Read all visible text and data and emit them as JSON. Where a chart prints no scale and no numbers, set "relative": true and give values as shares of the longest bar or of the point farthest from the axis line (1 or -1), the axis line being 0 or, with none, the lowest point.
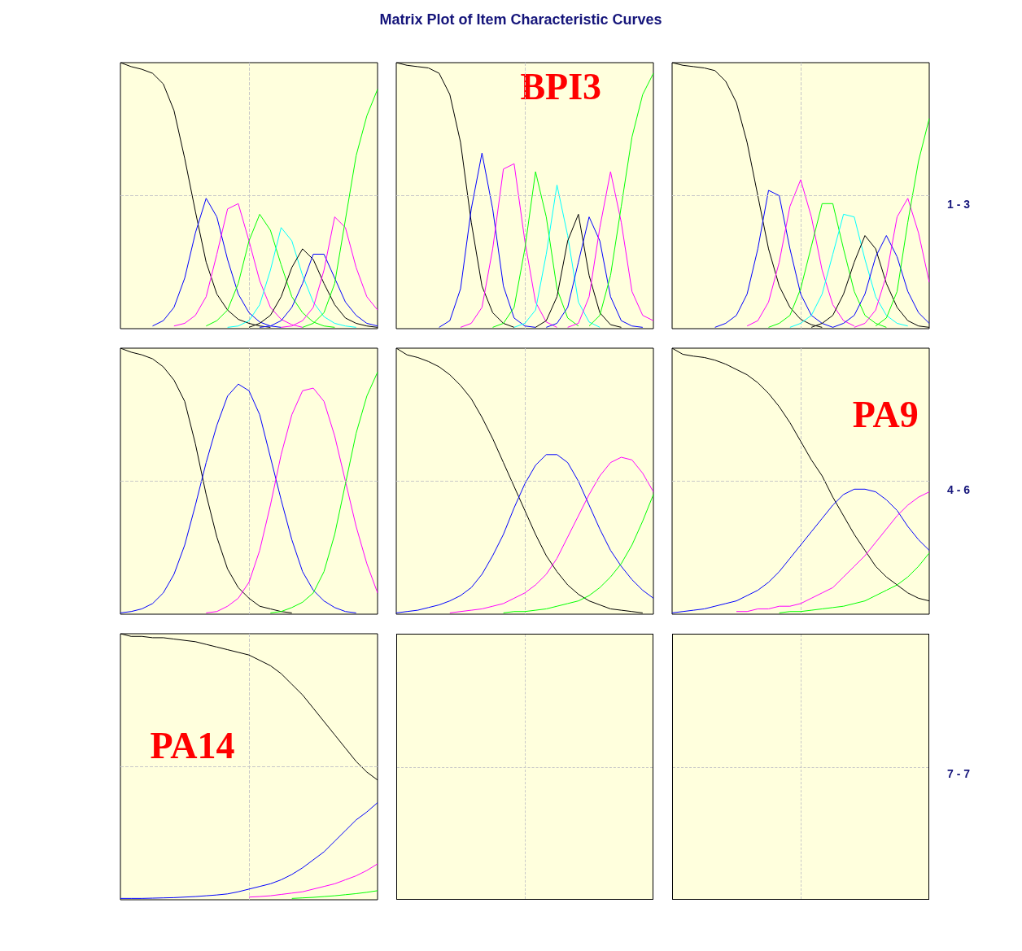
{
  "chart_data": [
    {
      "type": "other",
      "title": "Matrix Plot of Item Characteristic Curves"
    },
    {
      "type": "line",
      "relative": true,
      "grid": "x",
      "ref_lines": [
        {
          "axis": "y",
          "value": 0.5,
          "color": "#c8c8c8",
          "line_style": "dashed"
        }
      ],
      "categories": [
        null,
        null,
        null,
        null,
        null,
        null,
        null,
        null,
        null,
        null,
        null,
        null,
        null,
        null,
        null,
        null,
        null,
        null,
        null,
        null,
        null,
        null,
        null,
        null,
        null
      ],
      "series": [
        {
          "color": "#000000",
          "values": [
            1,
            0.985,
            0.975,
            0.96,
            0.92,
            0.82,
            0.64,
            0.44,
            0.25,
            0.13,
            0.07,
            0.035,
            0.02,
            0.01,
            0.005,
            null,
            null,
            null,
            null,
            null,
            null,
            null,
            null,
            null,
            null
          ]
        },
        {
          "color": "#0000ff",
          "values": [
            null,
            null,
            null,
            0.01,
            0.03,
            0.08,
            0.19,
            0.36,
            0.49,
            0.42,
            0.26,
            0.13,
            0.06,
            0.025,
            0.01,
            0.005,
            null,
            null,
            null,
            null,
            null,
            null,
            null,
            null,
            null
          ]
        },
        {
          "color": "#ff00ff",
          "values": [
            null,
            null,
            null,
            null,
            null,
            0.01,
            0.02,
            0.05,
            0.12,
            0.28,
            0.45,
            0.47,
            0.33,
            0.18,
            0.08,
            0.035,
            0.015,
            0.005,
            null,
            null,
            null,
            null,
            null,
            null,
            null
          ]
        },
        {
          "color": "#00ff00",
          "values": [
            null,
            null,
            null,
            null,
            null,
            null,
            null,
            null,
            0.01,
            0.03,
            0.07,
            0.17,
            0.33,
            0.43,
            0.37,
            0.24,
            0.12,
            0.06,
            0.025,
            0.01,
            0.005,
            null,
            null,
            null,
            null
          ]
        },
        {
          "color": "#00ffff",
          "values": [
            null,
            null,
            null,
            null,
            null,
            null,
            null,
            null,
            null,
            null,
            0.005,
            0.01,
            0.03,
            0.09,
            0.22,
            0.38,
            0.33,
            0.2,
            0.1,
            0.045,
            0.02,
            0.01,
            0.005,
            null,
            null
          ]
        },
        {
          "color": "#000000",
          "values": [
            null,
            null,
            null,
            null,
            null,
            null,
            null,
            null,
            null,
            null,
            null,
            null,
            0.005,
            0.02,
            0.05,
            0.12,
            0.23,
            0.3,
            0.26,
            0.17,
            0.09,
            0.04,
            0.02,
            0.01,
            0.005
          ]
        },
        {
          "color": "#0000ff",
          "values": [
            null,
            null,
            null,
            null,
            null,
            null,
            null,
            null,
            null,
            null,
            null,
            null,
            null,
            0.005,
            0.01,
            0.03,
            0.08,
            0.17,
            0.28,
            0.28,
            0.19,
            0.1,
            0.05,
            0.02,
            0.01
          ]
        },
        {
          "color": "#ff00ff",
          "values": [
            null,
            null,
            null,
            null,
            null,
            null,
            null,
            null,
            null,
            null,
            null,
            null,
            null,
            null,
            null,
            0.005,
            0.01,
            0.03,
            0.08,
            0.22,
            0.42,
            0.38,
            0.23,
            0.12,
            0.07
          ]
        },
        {
          "color": "#00ff00",
          "values": [
            null,
            null,
            null,
            null,
            null,
            null,
            null,
            null,
            null,
            null,
            null,
            null,
            null,
            null,
            null,
            null,
            null,
            0.005,
            0.02,
            0.06,
            0.17,
            0.41,
            0.65,
            0.8,
            0.9
          ]
        }
      ]
    },
    {
      "type": "line",
      "relative": true,
      "grid": "x",
      "ref_lines": [
        {
          "axis": "y",
          "value": 0.5,
          "color": "#c8c8c8",
          "line_style": "dashed"
        }
      ],
      "annotations": [
        "BPI3"
      ],
      "categories": [
        null,
        null,
        null,
        null,
        null,
        null,
        null,
        null,
        null,
        null,
        null,
        null,
        null,
        null,
        null,
        null,
        null,
        null,
        null,
        null,
        null,
        null,
        null,
        null,
        null
      ],
      "series": [
        {
          "color": "#000000",
          "values": [
            1,
            0.99,
            0.985,
            0.98,
            0.96,
            0.88,
            0.7,
            0.4,
            0.16,
            0.06,
            0.02,
            0.005,
            null,
            null,
            null,
            null,
            null,
            null,
            null,
            null,
            null,
            null,
            null,
            null,
            null
          ]
        },
        {
          "color": "#0000ff",
          "values": [
            null,
            null,
            null,
            null,
            0.005,
            0.03,
            0.15,
            0.45,
            0.66,
            0.45,
            0.16,
            0.04,
            0.01,
            0.005,
            null,
            null,
            null,
            null,
            null,
            null,
            null,
            null,
            null,
            null,
            null
          ]
        },
        {
          "color": "#ff00ff",
          "values": [
            null,
            null,
            null,
            null,
            null,
            null,
            0.005,
            0.02,
            0.08,
            0.3,
            0.6,
            0.62,
            0.33,
            0.1,
            0.025,
            0.005,
            null,
            null,
            null,
            null,
            null,
            null,
            null,
            null,
            null
          ]
        },
        {
          "color": "#00ff00",
          "values": [
            null,
            null,
            null,
            null,
            null,
            null,
            null,
            null,
            null,
            0.005,
            0.02,
            0.08,
            0.3,
            0.59,
            0.42,
            0.15,
            0.04,
            0.01,
            null,
            null,
            null,
            null,
            null,
            null,
            null
          ]
        },
        {
          "color": "#00ffff",
          "values": [
            null,
            null,
            null,
            null,
            null,
            null,
            null,
            null,
            null,
            null,
            null,
            0.005,
            0.02,
            0.07,
            0.28,
            0.54,
            0.35,
            0.1,
            0.025,
            0.005,
            null,
            null,
            null,
            null,
            null
          ]
        },
        {
          "color": "#000000",
          "values": [
            null,
            null,
            null,
            null,
            null,
            null,
            null,
            null,
            null,
            null,
            null,
            null,
            null,
            0.005,
            0.03,
            0.12,
            0.33,
            0.43,
            0.2,
            0.06,
            0.015,
            0.005,
            null,
            null,
            null
          ]
        },
        {
          "color": "#0000ff",
          "values": [
            null,
            null,
            null,
            null,
            null,
            null,
            null,
            null,
            null,
            null,
            null,
            null,
            null,
            null,
            0.005,
            0.02,
            0.08,
            0.25,
            0.42,
            0.33,
            0.12,
            0.03,
            0.01,
            0.005,
            null
          ]
        },
        {
          "color": "#ff00ff",
          "values": [
            null,
            null,
            null,
            null,
            null,
            null,
            null,
            null,
            null,
            null,
            null,
            null,
            null,
            null,
            null,
            null,
            0.005,
            0.02,
            0.12,
            0.38,
            0.59,
            0.4,
            0.14,
            0.05,
            0.03
          ]
        },
        {
          "color": "#00ff00",
          "values": [
            null,
            null,
            null,
            null,
            null,
            null,
            null,
            null,
            null,
            null,
            null,
            null,
            null,
            null,
            null,
            null,
            null,
            null,
            0.01,
            0.05,
            0.2,
            0.46,
            0.72,
            0.88,
            0.96
          ]
        }
      ]
    },
    {
      "type": "line",
      "relative": true,
      "grid": "x",
      "ref_lines": [
        {
          "axis": "y",
          "value": 0.5,
          "color": "#c8c8c8",
          "line_style": "dashed"
        }
      ],
      "y2label": "1 - 3",
      "categories": [
        null,
        null,
        null,
        null,
        null,
        null,
        null,
        null,
        null,
        null,
        null,
        null,
        null,
        null,
        null,
        null,
        null,
        null,
        null,
        null,
        null,
        null,
        null,
        null,
        null
      ],
      "series": [
        {
          "color": "#000000",
          "values": [
            1,
            0.99,
            0.985,
            0.98,
            0.97,
            0.93,
            0.85,
            0.7,
            0.5,
            0.3,
            0.16,
            0.08,
            0.035,
            0.015,
            0.005,
            null,
            null,
            null,
            null,
            null,
            null,
            null,
            null,
            null,
            null
          ]
        },
        {
          "color": "#0000ff",
          "values": [
            null,
            null,
            null,
            null,
            0.005,
            0.02,
            0.05,
            0.13,
            0.3,
            0.52,
            0.5,
            0.3,
            0.13,
            0.05,
            0.02,
            0.005,
            null,
            null,
            null,
            null,
            null,
            null,
            null,
            null,
            null
          ]
        },
        {
          "color": "#ff00ff",
          "values": [
            null,
            null,
            null,
            null,
            null,
            null,
            null,
            0.01,
            0.03,
            0.1,
            0.25,
            0.46,
            0.56,
            0.42,
            0.22,
            0.09,
            0.03,
            0.01,
            null,
            null,
            null,
            null,
            null,
            null,
            null
          ]
        },
        {
          "color": "#00ff00",
          "values": [
            null,
            null,
            null,
            null,
            null,
            null,
            null,
            null,
            null,
            0.005,
            0.02,
            0.05,
            0.15,
            0.31,
            0.47,
            0.47,
            0.3,
            0.14,
            0.05,
            0.02,
            0.005,
            null,
            null,
            null,
            null
          ]
        },
        {
          "color": "#00ffff",
          "values": [
            null,
            null,
            null,
            null,
            null,
            null,
            null,
            null,
            null,
            null,
            null,
            0.005,
            0.02,
            0.05,
            0.13,
            0.28,
            0.43,
            0.42,
            0.26,
            0.12,
            0.05,
            0.02,
            0.01,
            null,
            null
          ]
        },
        {
          "color": "#000000",
          "values": [
            null,
            null,
            null,
            null,
            null,
            null,
            null,
            null,
            null,
            null,
            null,
            null,
            null,
            0.005,
            0.02,
            0.05,
            0.13,
            0.25,
            0.35,
            0.3,
            0.17,
            0.08,
            0.03,
            0.01,
            0.005
          ]
        },
        {
          "color": "#0000ff",
          "values": [
            null,
            null,
            null,
            null,
            null,
            null,
            null,
            null,
            null,
            null,
            null,
            null,
            null,
            null,
            null,
            0.005,
            0.02,
            0.05,
            0.13,
            0.27,
            0.35,
            0.27,
            0.14,
            0.06,
            0.02
          ]
        },
        {
          "color": "#ff00ff",
          "values": [
            null,
            null,
            null,
            null,
            null,
            null,
            null,
            null,
            null,
            null,
            null,
            null,
            null,
            null,
            null,
            null,
            null,
            0.005,
            0.02,
            0.07,
            0.2,
            0.42,
            0.49,
            0.36,
            0.175
          ]
        },
        {
          "color": "#00ff00",
          "values": [
            null,
            null,
            null,
            null,
            null,
            null,
            null,
            null,
            null,
            null,
            null,
            null,
            null,
            null,
            null,
            null,
            null,
            null,
            null,
            0.01,
            0.04,
            0.14,
            0.4,
            0.63,
            0.79
          ]
        }
      ]
    },
    {
      "type": "line",
      "relative": true,
      "grid": "x",
      "ref_lines": [
        {
          "axis": "y",
          "value": 0.5,
          "color": "#c8c8c8",
          "line_style": "dashed"
        }
      ],
      "categories": [
        null,
        null,
        null,
        null,
        null,
        null,
        null,
        null,
        null,
        null,
        null,
        null,
        null,
        null,
        null,
        null,
        null,
        null,
        null,
        null,
        null,
        null,
        null,
        null,
        null
      ],
      "series": [
        {
          "color": "#000000",
          "values": [
            1,
            0.985,
            0.975,
            0.96,
            0.93,
            0.88,
            0.8,
            0.64,
            0.45,
            0.29,
            0.17,
            0.1,
            0.06,
            0.03,
            0.02,
            0.01,
            0.005,
            null,
            null,
            null,
            null,
            null,
            null,
            null,
            null
          ]
        },
        {
          "color": "#0000ff",
          "values": [
            0.005,
            0.01,
            0.02,
            0.04,
            0.08,
            0.15,
            0.26,
            0.41,
            0.57,
            0.71,
            0.82,
            0.865,
            0.84,
            0.75,
            0.59,
            0.43,
            0.28,
            0.16,
            0.09,
            0.05,
            0.025,
            0.01,
            0.005,
            null,
            null
          ]
        },
        {
          "color": "#ff00ff",
          "values": [
            null,
            null,
            null,
            null,
            null,
            null,
            null,
            null,
            0.005,
            0.01,
            0.03,
            0.06,
            0.12,
            0.24,
            0.41,
            0.6,
            0.75,
            0.84,
            0.85,
            0.8,
            0.67,
            0.5,
            0.33,
            0.19,
            0.08
          ]
        },
        {
          "color": "#00ff00",
          "values": [
            null,
            null,
            null,
            null,
            null,
            null,
            null,
            null,
            null,
            null,
            null,
            null,
            null,
            null,
            0.005,
            0.01,
            0.025,
            0.045,
            0.08,
            0.16,
            0.3,
            0.49,
            0.68,
            0.82,
            0.91
          ]
        }
      ]
    },
    {
      "type": "line",
      "relative": true,
      "grid": "x",
      "ref_lines": [
        {
          "axis": "y",
          "value": 0.5,
          "color": "#c8c8c8",
          "line_style": "dashed"
        }
      ],
      "categories": [
        null,
        null,
        null,
        null,
        null,
        null,
        null,
        null,
        null,
        null,
        null,
        null,
        null,
        null,
        null,
        null,
        null,
        null,
        null,
        null,
        null,
        null,
        null,
        null,
        null
      ],
      "series": [
        {
          "color": "#000000",
          "values": [
            1,
            0.975,
            0.965,
            0.95,
            0.93,
            0.9,
            0.86,
            0.81,
            0.74,
            0.66,
            0.57,
            0.48,
            0.39,
            0.3,
            0.22,
            0.16,
            0.11,
            0.075,
            0.05,
            0.035,
            0.02,
            0.015,
            0.01,
            0.005,
            null
          ]
        },
        {
          "color": "#0000ff",
          "values": [
            0.005,
            0.01,
            0.015,
            0.025,
            0.035,
            0.05,
            0.07,
            0.1,
            0.15,
            0.22,
            0.3,
            0.4,
            0.49,
            0.56,
            0.6,
            0.6,
            0.57,
            0.5,
            0.41,
            0.32,
            0.24,
            0.18,
            0.13,
            0.09,
            0.06
          ]
        },
        {
          "color": "#ff00ff",
          "values": [
            null,
            null,
            null,
            null,
            null,
            0.005,
            0.01,
            0.015,
            0.02,
            0.03,
            0.04,
            0.06,
            0.08,
            0.11,
            0.15,
            0.21,
            0.29,
            0.37,
            0.45,
            0.52,
            0.57,
            0.59,
            0.58,
            0.53,
            0.46
          ]
        },
        {
          "color": "#00ff00",
          "values": [
            null,
            null,
            null,
            null,
            null,
            null,
            null,
            null,
            null,
            null,
            0.005,
            0.01,
            0.01,
            0.015,
            0.02,
            0.03,
            0.04,
            0.05,
            0.07,
            0.1,
            0.14,
            0.19,
            0.26,
            0.35,
            0.45
          ]
        }
      ]
    },
    {
      "type": "line",
      "relative": true,
      "grid": "x",
      "ref_lines": [
        {
          "axis": "y",
          "value": 0.5,
          "color": "#c8c8c8",
          "line_style": "dashed"
        }
      ],
      "y2label": "4 - 6",
      "annotations": [
        "PA9"
      ],
      "categories": [
        null,
        null,
        null,
        null,
        null,
        null,
        null,
        null,
        null,
        null,
        null,
        null,
        null,
        null,
        null,
        null,
        null,
        null,
        null,
        null,
        null,
        null,
        null,
        null,
        null
      ],
      "series": [
        {
          "color": "#000000",
          "values": [
            1,
            0.977,
            0.97,
            0.965,
            0.955,
            0.94,
            0.92,
            0.9,
            0.87,
            0.83,
            0.78,
            0.72,
            0.65,
            0.58,
            0.52,
            0.44,
            0.37,
            0.3,
            0.24,
            0.18,
            0.14,
            0.11,
            0.08,
            0.06,
            0.05
          ]
        },
        {
          "color": "#0000ff",
          "values": [
            0.005,
            0.01,
            0.015,
            0.02,
            0.03,
            0.04,
            0.05,
            0.07,
            0.09,
            0.12,
            0.16,
            0.21,
            0.26,
            0.31,
            0.36,
            0.41,
            0.45,
            0.47,
            0.47,
            0.46,
            0.43,
            0.39,
            0.33,
            0.28,
            0.24
          ]
        },
        {
          "color": "#ff00ff",
          "values": [
            null,
            null,
            null,
            null,
            null,
            null,
            0.01,
            0.01,
            0.02,
            0.02,
            0.03,
            0.03,
            0.04,
            0.06,
            0.08,
            0.1,
            0.14,
            0.18,
            0.22,
            0.27,
            0.32,
            0.37,
            0.41,
            0.44,
            0.46
          ]
        },
        {
          "color": "#00ff00",
          "values": [
            null,
            null,
            null,
            null,
            null,
            null,
            null,
            null,
            null,
            null,
            0.005,
            0.01,
            0.01,
            0.015,
            0.02,
            0.025,
            0.03,
            0.04,
            0.05,
            0.07,
            0.09,
            0.11,
            0.14,
            0.18,
            0.23
          ]
        }
      ]
    },
    {
      "type": "line",
      "relative": true,
      "grid": "x",
      "ref_lines": [
        {
          "axis": "y",
          "value": 0.5,
          "color": "#c8c8c8",
          "line_style": "dashed"
        }
      ],
      "annotations": [
        "PA14"
      ],
      "categories": [
        null,
        null,
        null,
        null,
        null,
        null,
        null,
        null,
        null,
        null,
        null,
        null,
        null,
        null,
        null,
        null,
        null,
        null,
        null,
        null,
        null,
        null,
        null,
        null,
        null
      ],
      "series": [
        {
          "color": "#000000",
          "values": [
            1,
            0.99,
            0.99,
            0.985,
            0.985,
            0.98,
            0.975,
            0.97,
            0.96,
            0.95,
            0.94,
            0.93,
            0.92,
            0.9,
            0.88,
            0.85,
            0.81,
            0.77,
            0.72,
            0.67,
            0.62,
            0.57,
            0.52,
            0.48,
            0.45
          ]
        },
        {
          "color": "#0000ff",
          "values": [
            0.005,
            0.005,
            0.005,
            0.006,
            0.007,
            0.008,
            0.01,
            0.012,
            0.015,
            0.018,
            0.022,
            0.03,
            0.04,
            0.05,
            0.06,
            0.075,
            0.095,
            0.12,
            0.15,
            0.18,
            0.22,
            0.26,
            0.3,
            0.33,
            0.365
          ]
        },
        {
          "color": "#ff00ff",
          "values": [
            null,
            null,
            null,
            null,
            null,
            null,
            null,
            null,
            null,
            null,
            null,
            null,
            0.01,
            0.012,
            0.015,
            0.02,
            0.025,
            0.03,
            0.04,
            0.05,
            0.06,
            0.075,
            0.09,
            0.11,
            0.135
          ]
        },
        {
          "color": "#00ff00",
          "values": [
            null,
            null,
            null,
            null,
            null,
            null,
            null,
            null,
            null,
            null,
            null,
            null,
            null,
            null,
            null,
            null,
            0.005,
            0.007,
            0.009,
            0.012,
            0.015,
            0.019,
            0.023,
            0.028,
            0.034
          ]
        }
      ]
    },
    {
      "type": "other"
    },
    {
      "type": "other",
      "y2label": "7 - 7"
    }
  ]
}
